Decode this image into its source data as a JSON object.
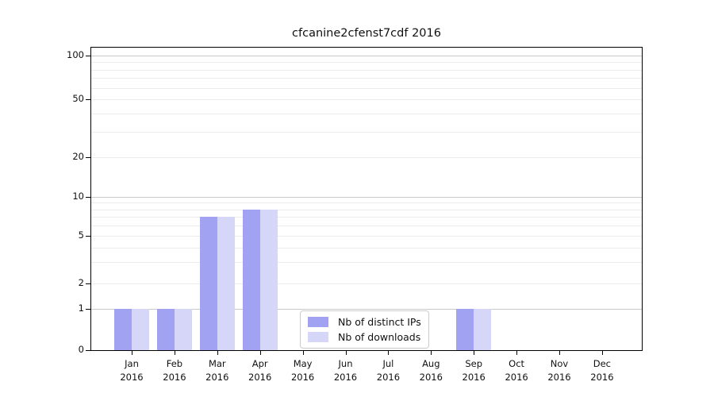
{
  "chart_data": {
    "type": "bar",
    "title": "cfcanine2cfenst7cdf 2016",
    "categories": [
      "Jan",
      "Feb",
      "Mar",
      "Apr",
      "May",
      "Jun",
      "Jul",
      "Aug",
      "Sep",
      "Oct",
      "Nov",
      "Dec"
    ],
    "x_year": "2016",
    "series": [
      {
        "name": "Nb of distinct IPs",
        "color": "#a2a2f2",
        "values": [
          1,
          1,
          7,
          8,
          0,
          0,
          0,
          0,
          1,
          0,
          0,
          0
        ]
      },
      {
        "name": "Nb of downloads",
        "color": "#d6d6f9",
        "values": [
          1,
          1,
          7,
          8,
          0,
          0,
          0,
          0,
          1,
          0,
          0,
          0
        ]
      }
    ],
    "xlabel": "",
    "ylabel": "",
    "y_ticks": [
      0,
      1,
      2,
      5,
      10,
      20,
      50,
      100
    ],
    "y_gridlines_major": [
      1,
      10,
      100
    ],
    "y_gridlines_minor": [
      2,
      3,
      4,
      5,
      6,
      7,
      8,
      9,
      20,
      30,
      40,
      50,
      60,
      70,
      80,
      90
    ],
    "ylim": [
      0,
      115
    ],
    "yscale": "symlog",
    "grid": true,
    "legend_position": "lower center"
  },
  "legend": {
    "items": [
      {
        "label": "Nb of distinct IPs",
        "color": "#a2a2f2"
      },
      {
        "label": "Nb of downloads",
        "color": "#d6d6f9"
      }
    ]
  }
}
